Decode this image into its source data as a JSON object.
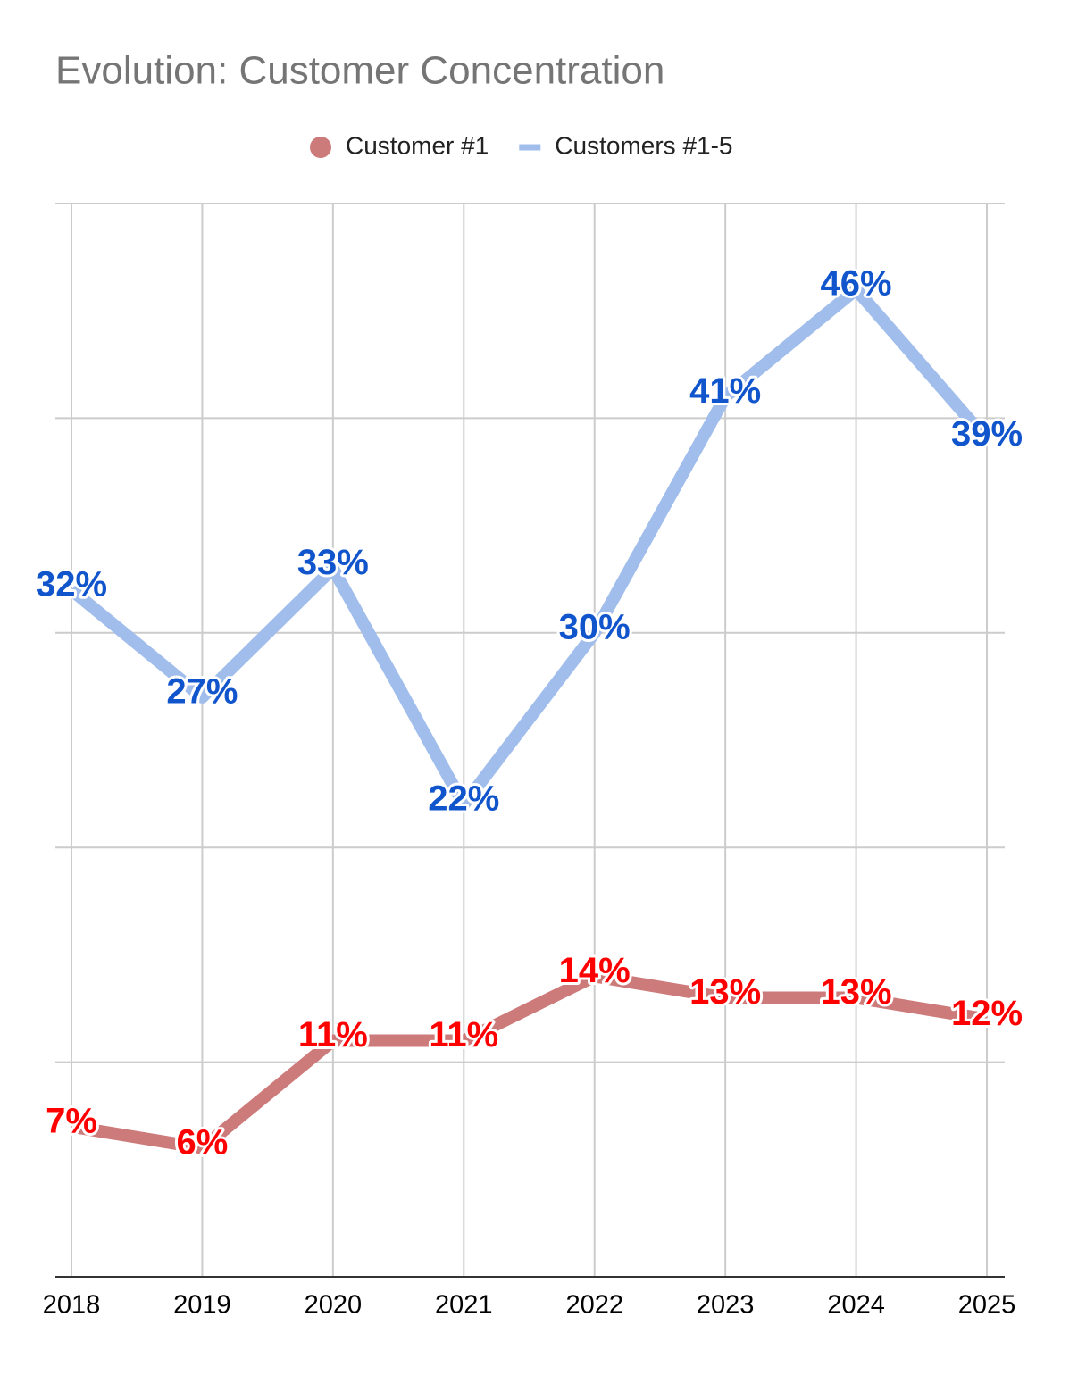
{
  "chart_data": {
    "type": "line",
    "title": "Evolution: Customer Concentration",
    "categories": [
      "2018",
      "2019",
      "2020",
      "2021",
      "2022",
      "2023",
      "2024",
      "2025"
    ],
    "series": [
      {
        "name": "Customer #1",
        "color": "#cd7a7a",
        "label_color": "#ff0000",
        "legend_marker": "circle",
        "values": [
          7,
          6,
          11,
          11,
          14,
          13,
          13,
          12
        ],
        "value_labels": [
          "7%",
          "6%",
          "11%",
          "11%",
          "14%",
          "13%",
          "13%",
          "12%"
        ]
      },
      {
        "name": "Customers #1-5",
        "color": "#a0bdec",
        "label_color": "#1155cc",
        "legend_marker": "line",
        "values": [
          32,
          27,
          33,
          22,
          30,
          41,
          46,
          39
        ],
        "value_labels": [
          "32%",
          "27%",
          "33%",
          "22%",
          "30%",
          "41%",
          "46%",
          "39%"
        ]
      }
    ],
    "ylim": [
      0,
      50
    ],
    "yticks": [
      0,
      10,
      20,
      30,
      40,
      50
    ],
    "grid": true
  }
}
